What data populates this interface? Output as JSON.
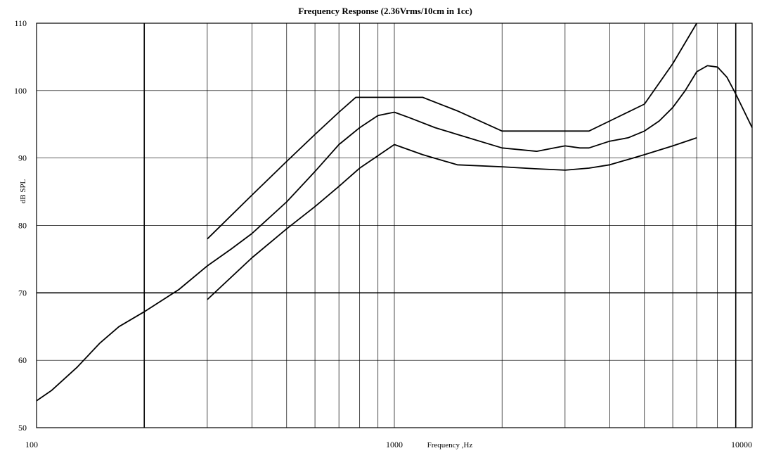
{
  "chart_data": {
    "type": "line",
    "title": "Frequency Response (2.36Vrms/10cm in 1cc)",
    "xlabel": "Frequency ,Hz",
    "ylabel": "dB SPL",
    "x_scale": "log",
    "xlim": [
      100,
      10000
    ],
    "ylim": [
      50,
      110
    ],
    "grid": true,
    "legend": "none",
    "x_ticks": [
      {
        "value": 100,
        "label": "100"
      },
      {
        "value": 1000,
        "label": "1000"
      },
      {
        "value": 10000,
        "label": "10000"
      }
    ],
    "y_ticks": [
      {
        "value": 50,
        "label": "50"
      },
      {
        "value": 60,
        "label": "60"
      },
      {
        "value": 70,
        "label": "70"
      },
      {
        "value": 80,
        "label": "80"
      },
      {
        "value": 90,
        "label": "90"
      },
      {
        "value": 100,
        "label": "100"
      },
      {
        "value": 110,
        "label": "110"
      }
    ],
    "x_gridlines": [
      200,
      300,
      400,
      500,
      600,
      700,
      800,
      900,
      1000,
      2000,
      3000,
      4000,
      5000,
      6000,
      7000,
      8000,
      9000
    ],
    "x_gridlines_heavy": [
      200,
      9000
    ],
    "y_gridlines_heavy": [
      70
    ],
    "series": [
      {
        "x": [
          300,
          400,
          500,
          600,
          700,
          780,
          1000,
          1200,
          1500,
          2000,
          2500,
          3000,
          3500,
          4000,
          5000,
          6000,
          7000
        ],
        "values": [
          78,
          84.5,
          89.5,
          93.5,
          96.8,
          99,
          99,
          99,
          97,
          94,
          94,
          94,
          94,
          95.5,
          98,
          104,
          110
        ]
      },
      {
        "x": [
          100,
          110,
          130,
          150,
          170,
          200,
          250,
          300,
          350,
          400,
          500,
          600,
          700,
          800,
          900,
          1000,
          1100,
          1300,
          1500,
          2000,
          2500,
          2800,
          3000,
          3300,
          3500,
          4000,
          4500,
          5000,
          5500,
          6000,
          6500,
          7000,
          7500,
          8000,
          8500,
          9000,
          10000
        ],
        "values": [
          54,
          55.5,
          59,
          62.5,
          65,
          67.2,
          70.5,
          74,
          76.5,
          78.8,
          83.5,
          88,
          92,
          94.5,
          96.3,
          96.8,
          96,
          94.5,
          93.5,
          91.5,
          91,
          91.5,
          91.8,
          91.5,
          91.5,
          92.5,
          93,
          94,
          95.5,
          97.5,
          100,
          102.8,
          103.7,
          103.5,
          102,
          99.5,
          94.5
        ]
      },
      {
        "x": [
          300,
          400,
          500,
          600,
          700,
          800,
          1000,
          1200,
          1500,
          2000,
          2500,
          3000,
          3500,
          4000,
          5000,
          6000,
          7000
        ],
        "values": [
          69,
          75.2,
          79.5,
          82.8,
          85.8,
          88.5,
          92,
          90.5,
          89,
          88.7,
          88.4,
          88.2,
          88.5,
          89,
          90.5,
          91.8,
          93
        ]
      }
    ]
  }
}
